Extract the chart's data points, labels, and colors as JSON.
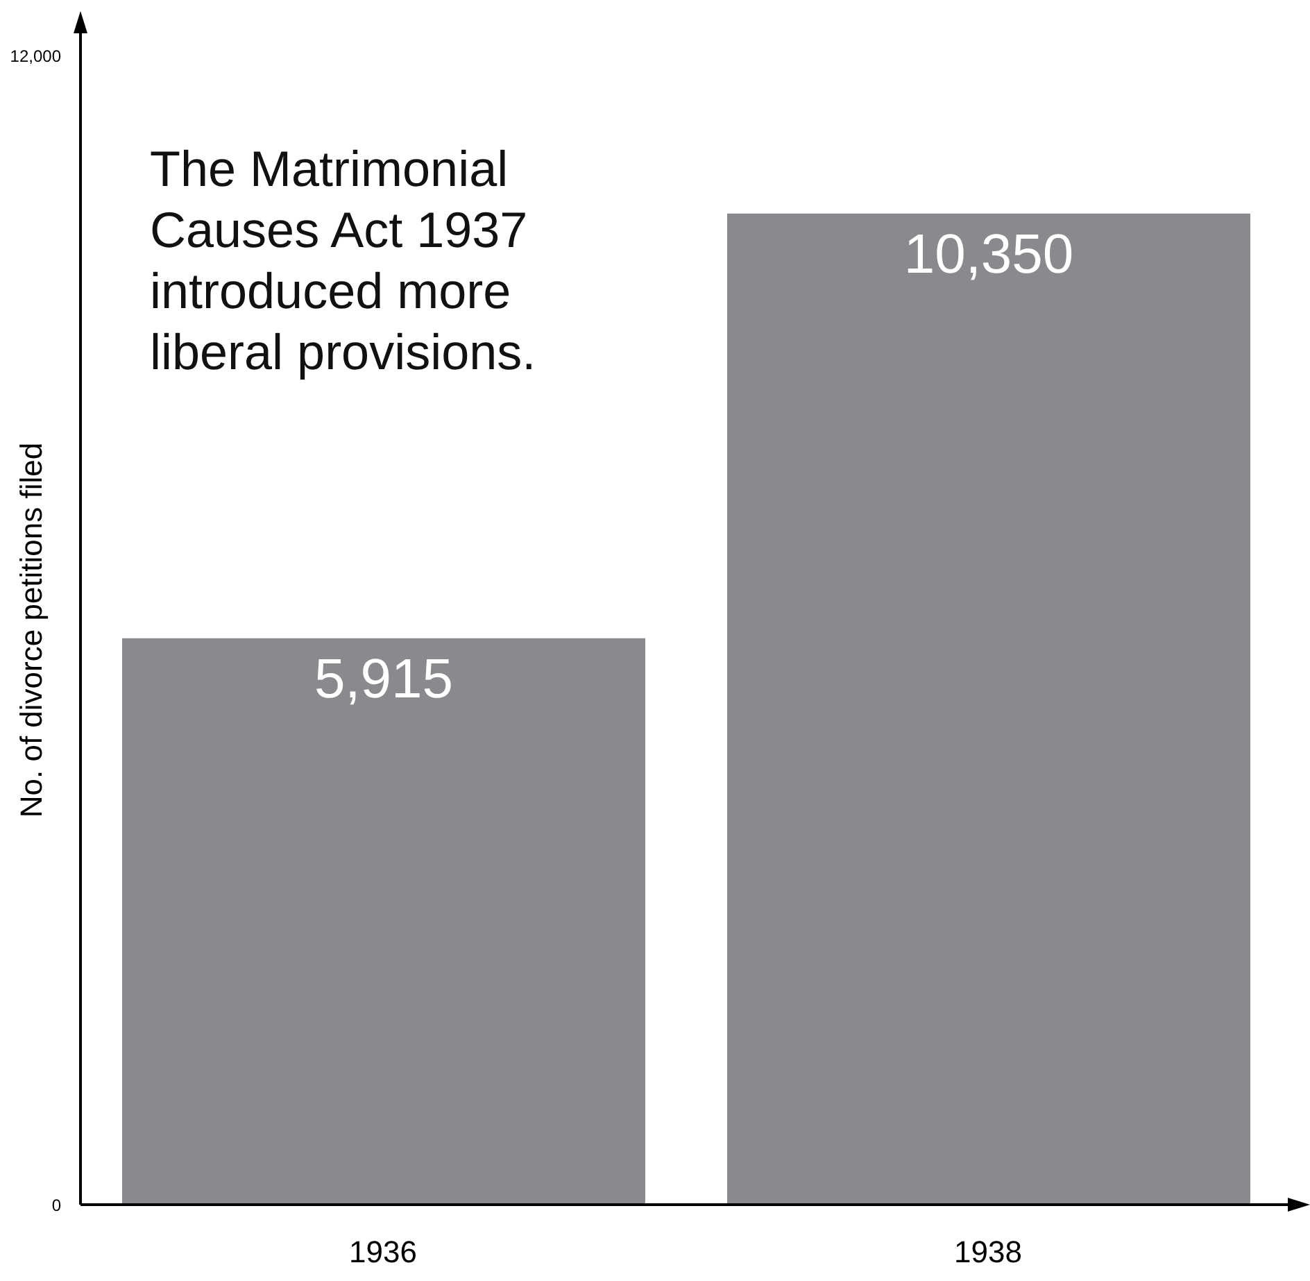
{
  "chart_data": {
    "type": "bar",
    "ylabel": "No. of divorce petitions filed",
    "categories": [
      "1936",
      "1938"
    ],
    "values": [
      5915,
      10350
    ],
    "color": "#8a898e",
    "ylim": [
      0,
      12000
    ],
    "yticks": [
      0,
      {
        "value": 12000,
        "label": "12,000"
      }
    ],
    "value_labels": [
      "5,915",
      "10,350"
    ],
    "annotations": [
      "The Matrimonial Causes Act 1937 introduced more liberal provisions."
    ]
  }
}
